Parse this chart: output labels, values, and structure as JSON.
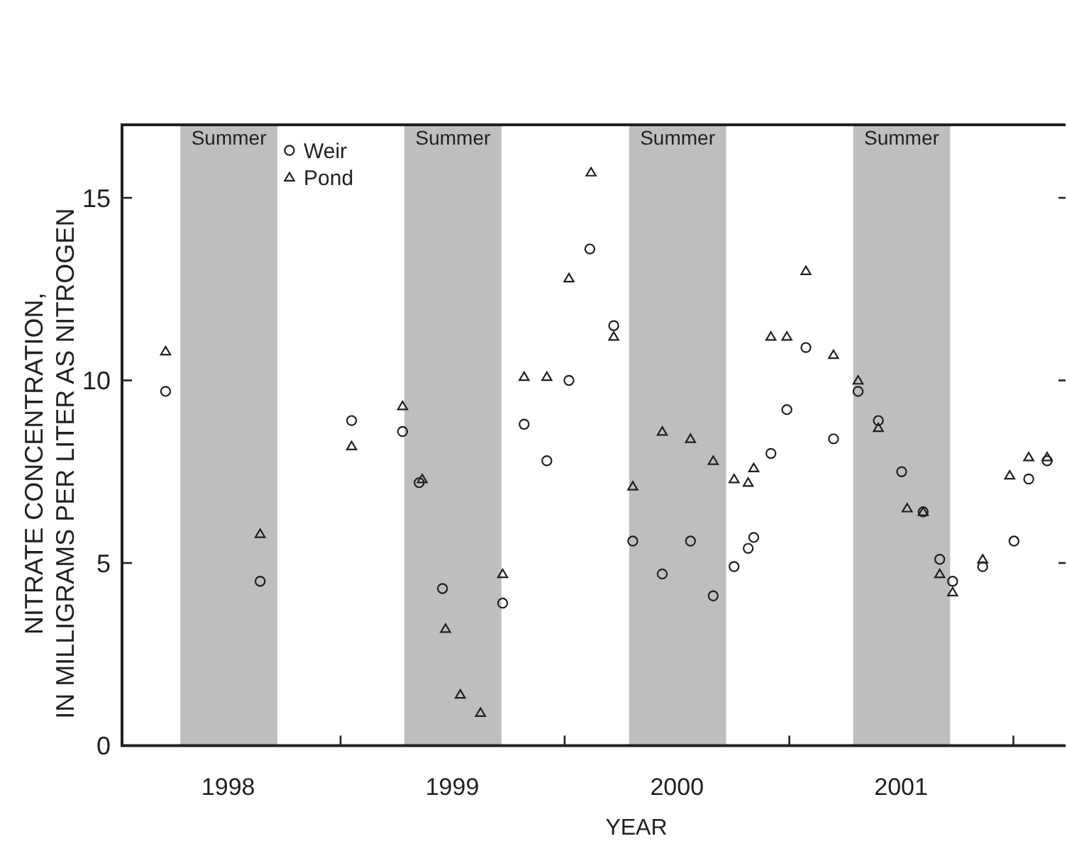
{
  "chart_data": {
    "type": "scatter",
    "xlabel": "YEAR",
    "ylabel": "NITRATE CONCENTRATION,\nIN MILLIGRAMS PER LITER AS NITROGEN",
    "xlim": [
      "1998-01-10",
      "2002-03-27"
    ],
    "xticks": [
      {
        "value": "1999-01-01",
        "label": null
      },
      {
        "value": "2000-01-01",
        "label": null
      },
      {
        "value": "2001-01-01",
        "label": null
      },
      {
        "value": "2002-01-01",
        "label": null
      },
      {
        "value": "1998-07-02",
        "label": "1998"
      },
      {
        "value": "1999-07-02",
        "label": "1999"
      },
      {
        "value": "2000-07-02",
        "label": "2000"
      },
      {
        "value": "2001-07-02",
        "label": "2001"
      }
    ],
    "ylim": [
      0,
      17
    ],
    "yticks": [
      0,
      5,
      10,
      15
    ],
    "grid": false,
    "legend": "top left",
    "bands": [
      {
        "axis": "x",
        "from": "1998-04-15",
        "to": "1998-09-20",
        "label": "Summer",
        "color": "#bcbec0"
      },
      {
        "axis": "x",
        "from": "1999-04-15",
        "to": "1999-09-20",
        "label": "Summer",
        "color": "#bcbec0"
      },
      {
        "axis": "x",
        "from": "2000-04-15",
        "to": "2000-09-20",
        "label": "Summer",
        "color": "#bcbec0"
      },
      {
        "axis": "x",
        "from": "2001-04-15",
        "to": "2001-09-20",
        "label": "Summer",
        "color": "#bcbec0"
      }
    ],
    "series": [
      {
        "name": "Weir",
        "color": "#231f20",
        "marker": "circle",
        "x": [
          "1998-03-22",
          "1998-08-23",
          "1999-01-19",
          "1999-04-12",
          "1999-05-09",
          "1999-06-16",
          "1999-09-22",
          "1999-10-27",
          "1999-12-03",
          "2000-01-08",
          "2000-02-11",
          "2000-03-21",
          "2000-04-21",
          "2000-06-08",
          "2000-07-24",
          "2000-08-30",
          "2000-10-03",
          "2000-10-26",
          "2000-11-04",
          "2000-12-02",
          "2000-12-28",
          "2001-01-28",
          "2001-03-14",
          "2001-04-23",
          "2001-05-26",
          "2001-07-03",
          "2001-08-07",
          "2001-09-03",
          "2001-09-24",
          "2001-11-12",
          "2002-01-02",
          "2002-01-26",
          "2002-02-25"
        ],
        "values": [
          9.7,
          4.5,
          8.9,
          8.6,
          7.2,
          4.3,
          3.9,
          8.8,
          7.8,
          10.0,
          13.6,
          11.5,
          5.6,
          4.7,
          5.6,
          4.1,
          4.9,
          5.4,
          5.7,
          8.0,
          9.2,
          10.9,
          8.4,
          9.7,
          8.9,
          7.5,
          6.4,
          5.1,
          4.5,
          4.9,
          5.6,
          7.3,
          7.8
        ]
      },
      {
        "name": "Pond",
        "color": "#231f20",
        "marker": "triangle",
        "x": [
          "1998-03-22",
          "1998-08-23",
          "1999-01-19",
          "1999-04-12",
          "1999-05-14",
          "1999-06-21",
          "1999-07-15",
          "1999-08-17",
          "1999-09-22",
          "1999-10-27",
          "1999-12-03",
          "2000-01-08",
          "2000-02-13",
          "2000-03-21",
          "2000-04-21",
          "2000-06-08",
          "2000-07-24",
          "2000-08-30",
          "2000-10-03",
          "2000-10-26",
          "2000-11-04",
          "2000-12-02",
          "2000-12-28",
          "2001-01-28",
          "2001-03-14",
          "2001-04-23",
          "2001-05-26",
          "2001-07-12",
          "2001-08-07",
          "2001-09-03",
          "2001-09-24",
          "2001-11-12",
          "2001-12-26",
          "2002-01-26",
          "2002-02-25"
        ],
        "values": [
          10.8,
          5.8,
          8.2,
          9.3,
          7.3,
          3.2,
          1.4,
          0.9,
          4.7,
          10.1,
          10.1,
          12.8,
          15.7,
          11.2,
          7.1,
          8.6,
          8.4,
          7.8,
          7.3,
          7.2,
          7.6,
          11.2,
          11.2,
          13.0,
          10.7,
          10.0,
          8.7,
          6.5,
          6.4,
          4.7,
          4.2,
          5.1,
          7.4,
          7.9,
          7.9
        ]
      }
    ]
  }
}
